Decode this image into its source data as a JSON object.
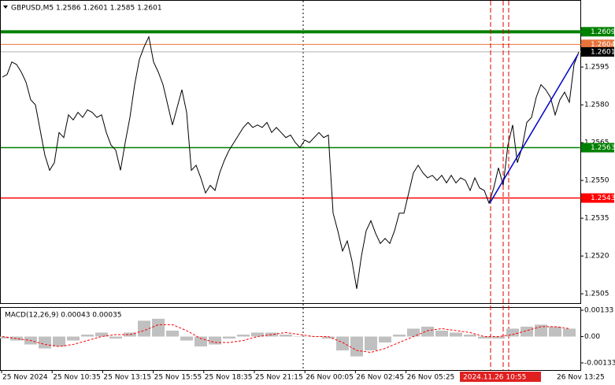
{
  "chart_data": {
    "type": "line",
    "title": "GBPUSD,M5  1.2586 1.2601 1.2585 1.2601",
    "series": [
      {
        "name": "GBPUSD",
        "color": "#000000",
        "values": [
          1.2591,
          1.2592,
          1.2597,
          1.2596,
          1.2593,
          1.2589,
          1.2582,
          1.258,
          1.257,
          1.256,
          1.2554,
          1.2557,
          1.2569,
          1.2567,
          1.2576,
          1.2574,
          1.2577,
          1.2575,
          1.2578,
          1.2577,
          1.2575,
          1.2576,
          1.2569,
          1.2564,
          1.2562,
          1.2554,
          1.2565,
          1.2575,
          1.2588,
          1.2598,
          1.2603,
          1.2607,
          1.2597,
          1.2593,
          1.2588,
          1.258,
          1.2572,
          1.2579,
          1.2586,
          1.2577,
          1.2554,
          1.2556,
          1.2551,
          1.2545,
          1.2548,
          1.2546,
          1.2553,
          1.2558,
          1.2562,
          1.2565,
          1.2568,
          1.2571,
          1.2573,
          1.2571,
          1.2572,
          1.2571,
          1.2573,
          1.2569,
          1.2571,
          1.2569,
          1.2567,
          1.2568,
          1.2565,
          1.2563,
          1.2566,
          1.2565,
          1.2567,
          1.2569,
          1.2567,
          1.2568,
          1.2537,
          1.253,
          1.2522,
          1.2526,
          1.2518,
          1.2507,
          1.252,
          1.253,
          1.2534,
          1.2529,
          1.2525,
          1.2527,
          1.2525,
          1.253,
          1.2537,
          1.2537,
          1.2545,
          1.2553,
          1.2556,
          1.2553,
          1.2551,
          1.2552,
          1.255,
          1.2552,
          1.2549,
          1.2552,
          1.2549,
          1.2551,
          1.255,
          1.2546,
          1.2551,
          1.2547,
          1.2546,
          1.2541,
          1.2547,
          1.2555,
          1.2548,
          1.2564,
          1.2572,
          1.2557,
          1.2563,
          1.2573,
          1.2575,
          1.2583,
          1.2588,
          1.2586,
          1.2583,
          1.2576,
          1.2582,
          1.2585,
          1.2581,
          1.2596,
          1.2601
        ]
      }
    ],
    "ylim": [
      1.25013,
      1.26216
    ],
    "yticks": [
      {
        "value": 1.2505,
        "label": "1.2505"
      },
      {
        "value": 1.252,
        "label": "1.2520"
      },
      {
        "value": 1.2535,
        "label": "1.2535"
      },
      {
        "value": 1.255,
        "label": "1.2550"
      },
      {
        "value": 1.2565,
        "label": "1.2565"
      },
      {
        "value": 1.258,
        "label": "1.2580"
      },
      {
        "value": 1.2595,
        "label": "1.2595"
      }
    ],
    "levels": [
      {
        "value": 1.2609,
        "color": "#008000"
      },
      {
        "value": 1.2604,
        "color": "#e8743b"
      },
      {
        "value": 1.2601,
        "color": "#000000"
      },
      {
        "value": 1.2563,
        "color": "#008000"
      },
      {
        "value": 1.2543,
        "color": "#ff0000"
      }
    ],
    "trendline": {
      "color": "#0000cc",
      "values": [
        1.2541,
        1.26
      ]
    },
    "x_labels": [
      "25 Nov 2024",
      "25 Nov 10:35",
      "25 Nov 13:15",
      "25 Nov 15:55",
      "25 Nov 18:35",
      "25 Nov 21:15",
      "26 Nov 00:05",
      "26 Nov 02:45",
      "26 Nov 05:25"
    ],
    "x_highlight": "2024.11.26 10:55",
    "x_last": "26 Nov 13:25",
    "macd": {
      "title": "MACD(12,26,9) 0.00043 0.00035",
      "hist_color": "#c0c0c0",
      "signal_color": "#ff0000",
      "hist": [
        -0.0001,
        -0.0002,
        -0.0004,
        -0.0006,
        -0.0005,
        -0.0002,
        0.0001,
        0.0002,
        -0.0001,
        0.0002,
        0.0008,
        0.0009,
        0.0003,
        -0.0002,
        -0.0005,
        -0.0004,
        -0.0001,
        0.0001,
        0.0002,
        0.0002,
        0.0001,
        0,
        0,
        -0.0001,
        -0.0007,
        -0.001,
        -0.0007,
        -0.0003,
        0.0001,
        0.0004,
        0.0005,
        0.0003,
        0.0002,
        0.0001,
        -0.0001,
        -0.0001,
        0.0004,
        0.0005,
        0.0006,
        0.0005,
        0.0004
      ],
      "signal": [
        0,
        -0.0001,
        -0.0002,
        -0.0004,
        -0.0005,
        -0.0004,
        -0.0002,
        0,
        0.0001,
        0.0001,
        0.0003,
        0.0006,
        0.0006,
        0.0003,
        -0.0001,
        -0.0003,
        -0.0003,
        -0.0002,
        0,
        0.0001,
        0.0002,
        0.0001,
        0,
        0,
        -0.0003,
        -0.0007,
        -0.0008,
        -0.0006,
        -0.0003,
        0,
        0.0003,
        0.0004,
        0.0003,
        0.0002,
        0,
        0,
        0.0001,
        0.0003,
        0.0005,
        0.0005,
        0.0004
      ],
      "ylim": [
        -0.00169,
        0.00145
      ],
      "yticks": [
        0.00133,
        {
          "value": 0,
          "label": "0.00"
        },
        -0.00133
      ]
    }
  }
}
